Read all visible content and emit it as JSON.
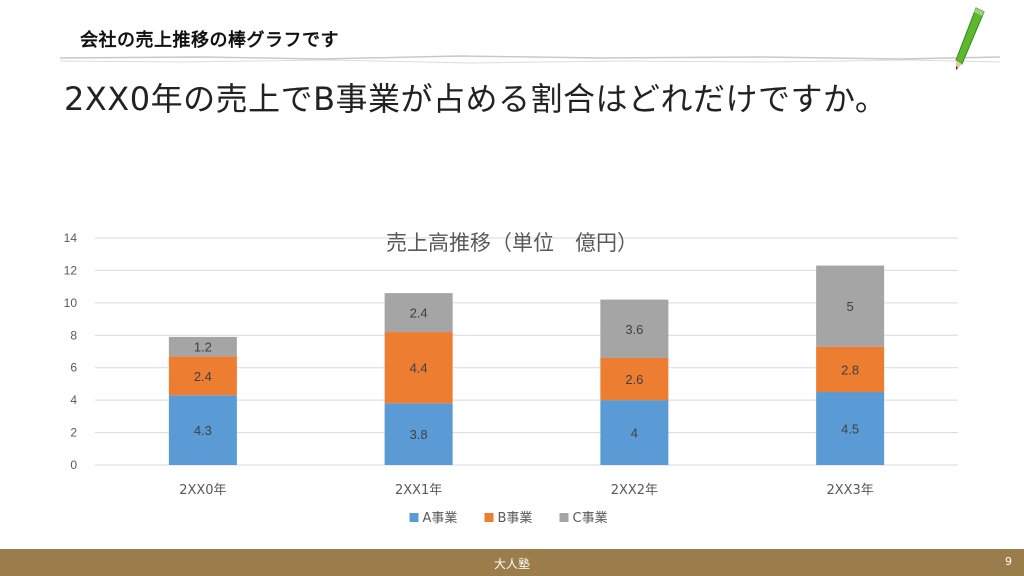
{
  "slide": {
    "title": "会社の売上推移の棒グラフです",
    "question": "2XX0年の売上でB事業が占める割合はどれだけですか。"
  },
  "footer": {
    "center_text": "大人塾",
    "page_number": "9",
    "color": "#9a7d4a"
  },
  "chart_data": {
    "type": "bar",
    "stacked": true,
    "title": "売上高推移（単位　億円）",
    "categories": [
      "2XX0年",
      "2XX1年",
      "2XX2年",
      "2XX3年"
    ],
    "series": [
      {
        "name": "A事業",
        "values": [
          4.3,
          3.8,
          4,
          4.5
        ],
        "labels": [
          "4.3",
          "3.8",
          "4",
          "4.5"
        ],
        "color": "#5b9bd5"
      },
      {
        "name": "B事業",
        "values": [
          2.4,
          4.4,
          2.6,
          2.8
        ],
        "labels": [
          "2.4",
          "4.4",
          "2.6",
          "2.8"
        ],
        "color": "#ed7d31"
      },
      {
        "name": "C事業",
        "values": [
          1.2,
          2.4,
          3.6,
          5
        ],
        "labels": [
          "1.2",
          "2.4",
          "3.6",
          "5"
        ],
        "color": "#a5a5a5"
      }
    ],
    "ylim": [
      0,
      14
    ],
    "yticks": [
      "0",
      "2",
      "4",
      "6",
      "8",
      "10",
      "12",
      "14"
    ],
    "grid": true,
    "legend": "bottom"
  }
}
